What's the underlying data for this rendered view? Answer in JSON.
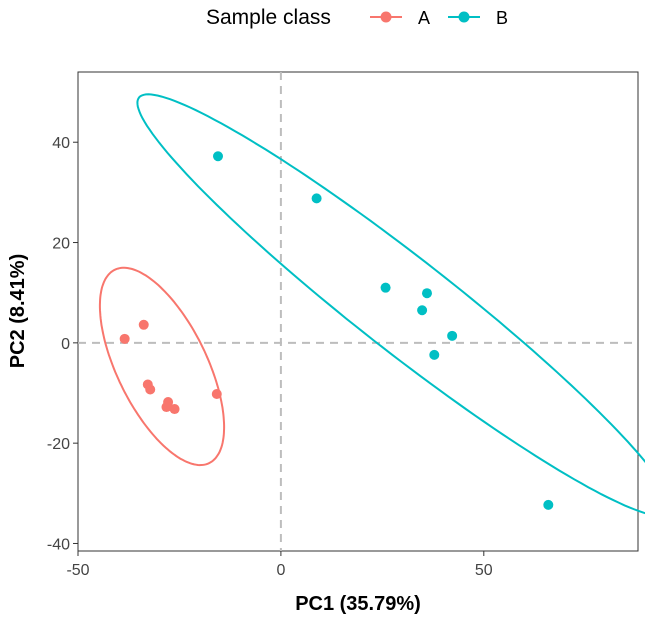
{
  "chart_data": {
    "type": "scatter",
    "xlabel": "PC1 (35.79%)",
    "ylabel": "PC2 (8.41%)",
    "xlim": [
      -50,
      88
    ],
    "ylim": [
      -41.5,
      54
    ],
    "x_ticks": [
      -50,
      0,
      50
    ],
    "y_ticks": [
      -40,
      -20,
      0,
      20,
      40
    ],
    "reference_lines": {
      "x": 0,
      "y": 0,
      "style": "dashed"
    },
    "grid": false,
    "legend": {
      "title": "Sample class",
      "placement": "top"
    },
    "series": [
      {
        "name": "A",
        "color": "#F8766D",
        "points": [
          [
            -38.5,
            0.8
          ],
          [
            -33.8,
            3.6
          ],
          [
            -32.8,
            -8.3
          ],
          [
            -32.2,
            -9.3
          ],
          [
            -27.8,
            -11.8
          ],
          [
            -28.2,
            -12.8
          ],
          [
            -26.2,
            -13.2
          ],
          [
            -15.8,
            -10.2
          ]
        ],
        "ellipse": {
          "cx": -29.3,
          "cy": -4.7,
          "rx": 22.6,
          "ry": 10.5,
          "angle_deg": -56.2
        }
      },
      {
        "name": "B",
        "color": "#00BFC4",
        "points": [
          [
            -15.5,
            37.2
          ],
          [
            8.8,
            28.8
          ],
          [
            25.8,
            11.0
          ],
          [
            36.0,
            9.9
          ],
          [
            34.8,
            6.5
          ],
          [
            42.2,
            1.4
          ],
          [
            37.8,
            -2.4
          ],
          [
            65.9,
            -32.3
          ]
        ],
        "ellipse": {
          "cx": 30.5,
          "cy": 7.5,
          "rx": 77.5,
          "ry": 10.0,
          "angle_deg": -32.1
        }
      }
    ]
  }
}
